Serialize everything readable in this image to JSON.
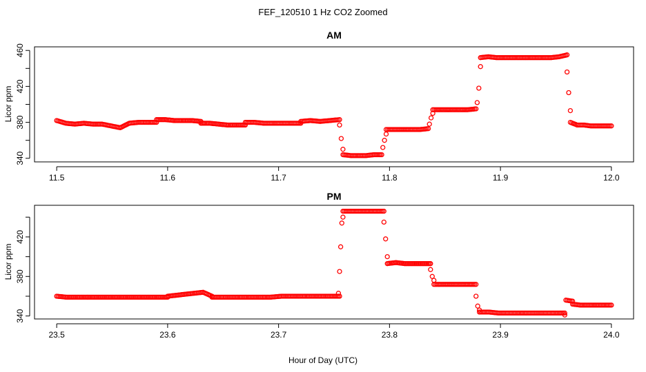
{
  "figure": {
    "title": "FEF_120510  1 Hz CO2 Zoomed",
    "xlabel": "Hour of Day (UTC)"
  },
  "chart_data": [
    {
      "type": "scatter",
      "title": "AM",
      "xlabel": "Hour of Day (UTC)",
      "ylabel": "Licor ppm",
      "xlim": [
        11.48,
        12.02
      ],
      "ylim": [
        336,
        464
      ],
      "xticks": [
        "11.5",
        "11.6",
        "11.7",
        "11.8",
        "11.9",
        "12.0"
      ],
      "yticks": [
        "340",
        "380",
        "420",
        "460"
      ],
      "yticks_minor": [
        360,
        400,
        440
      ],
      "marker_color": "#ff0000",
      "grid": false,
      "segments": [
        {
          "x_start": 11.5,
          "x_end": 11.59,
          "y": [
            382,
            379,
            378,
            379,
            378,
            378,
            376,
            374,
            379,
            380,
            380,
            380
          ]
        },
        {
          "x_start": 11.59,
          "x_end": 11.63,
          "y": [
            383,
            383,
            382,
            382,
            382,
            381
          ]
        },
        {
          "x_start": 11.63,
          "x_end": 11.67,
          "y": [
            379,
            379,
            378,
            377,
            377,
            377
          ]
        },
        {
          "x_start": 11.67,
          "x_end": 11.72,
          "y": [
            380,
            380,
            379,
            379,
            379,
            379,
            379
          ]
        },
        {
          "x_start": 11.72,
          "x_end": 11.755,
          "y": [
            381,
            382,
            381,
            382,
            383
          ]
        },
        {
          "x_start": 11.755,
          "x_end": 11.758,
          "y": [
            377,
            362,
            350
          ]
        },
        {
          "x_start": 11.758,
          "x_end": 11.793,
          "y": [
            344,
            343,
            343,
            343,
            344,
            344
          ]
        },
        {
          "x_start": 11.794,
          "x_end": 11.797,
          "y": [
            352,
            360,
            367
          ]
        },
        {
          "x_start": 11.797,
          "x_end": 11.835,
          "y": [
            372,
            372,
            372,
            372,
            372,
            373
          ]
        },
        {
          "x_start": 11.836,
          "x_end": 11.839,
          "y": [
            378,
            385,
            390
          ]
        },
        {
          "x_start": 11.839,
          "x_end": 11.878,
          "y": [
            394,
            394,
            394,
            394,
            394,
            395
          ]
        },
        {
          "x_start": 11.879,
          "x_end": 11.882,
          "y": [
            402,
            418,
            442
          ]
        },
        {
          "x_start": 11.882,
          "x_end": 11.96,
          "y": [
            452,
            453,
            452,
            452,
            452,
            452,
            452,
            452,
            452,
            452,
            453,
            455
          ]
        },
        {
          "x_start": 11.96,
          "x_end": 11.963,
          "y": [
            436,
            413,
            393
          ]
        },
        {
          "x_start": 11.963,
          "x_end": 12.0,
          "y": [
            380,
            377,
            377,
            376,
            376,
            376,
            376
          ]
        }
      ]
    },
    {
      "type": "scatter",
      "title": "PM",
      "xlabel": "Hour of Day (UTC)",
      "ylabel": "Licor ppm",
      "xlim": [
        23.48,
        24.02
      ],
      "ylim": [
        337,
        452
      ],
      "xticks": [
        "23.5",
        "23.6",
        "23.7",
        "23.8",
        "23.9",
        "24.0"
      ],
      "yticks": [
        "340",
        "380",
        "420"
      ],
      "yticks_minor": [
        360,
        400,
        440
      ],
      "marker_color": "#ff0000",
      "grid": false,
      "segments": [
        {
          "x_start": 23.5,
          "x_end": 23.6,
          "y": [
            360,
            359,
            359,
            359,
            359,
            359,
            359,
            359,
            359,
            359,
            359,
            359
          ]
        },
        {
          "x_start": 23.6,
          "x_end": 23.64,
          "y": [
            360,
            361,
            362,
            363,
            364,
            360
          ]
        },
        {
          "x_start": 23.64,
          "x_end": 23.755,
          "y": [
            359,
            359,
            359,
            359,
            359,
            359,
            360,
            360,
            360,
            360,
            360,
            360
          ]
        },
        {
          "x_start": 23.754,
          "x_end": 23.758,
          "y": [
            363,
            385,
            410,
            434,
            440
          ]
        },
        {
          "x_start": 23.758,
          "x_end": 23.795,
          "y": [
            446,
            446,
            446,
            446,
            446,
            446
          ]
        },
        {
          "x_start": 23.795,
          "x_end": 23.798,
          "y": [
            435,
            418,
            400
          ]
        },
        {
          "x_start": 23.798,
          "x_end": 23.837,
          "y": [
            393,
            394,
            393,
            393,
            393,
            393
          ]
        },
        {
          "x_start": 23.837,
          "x_end": 23.84,
          "y": [
            387,
            380,
            376
          ]
        },
        {
          "x_start": 23.84,
          "x_end": 23.878,
          "y": [
            372,
            372,
            372,
            372,
            372,
            372
          ]
        },
        {
          "x_start": 23.878,
          "x_end": 23.881,
          "y": [
            360,
            350,
            346
          ]
        },
        {
          "x_start": 23.881,
          "x_end": 23.958,
          "y": [
            344,
            344,
            343,
            343,
            343,
            343,
            343,
            343,
            343,
            343
          ]
        },
        {
          "x_start": 23.958,
          "x_end": 23.959,
          "y": [
            341
          ]
        },
        {
          "x_start": 23.959,
          "x_end": 23.965,
          "y": [
            356,
            355
          ]
        },
        {
          "x_start": 23.965,
          "x_end": 24.0,
          "y": [
            352,
            351,
            351,
            351,
            351,
            351
          ]
        }
      ]
    }
  ]
}
